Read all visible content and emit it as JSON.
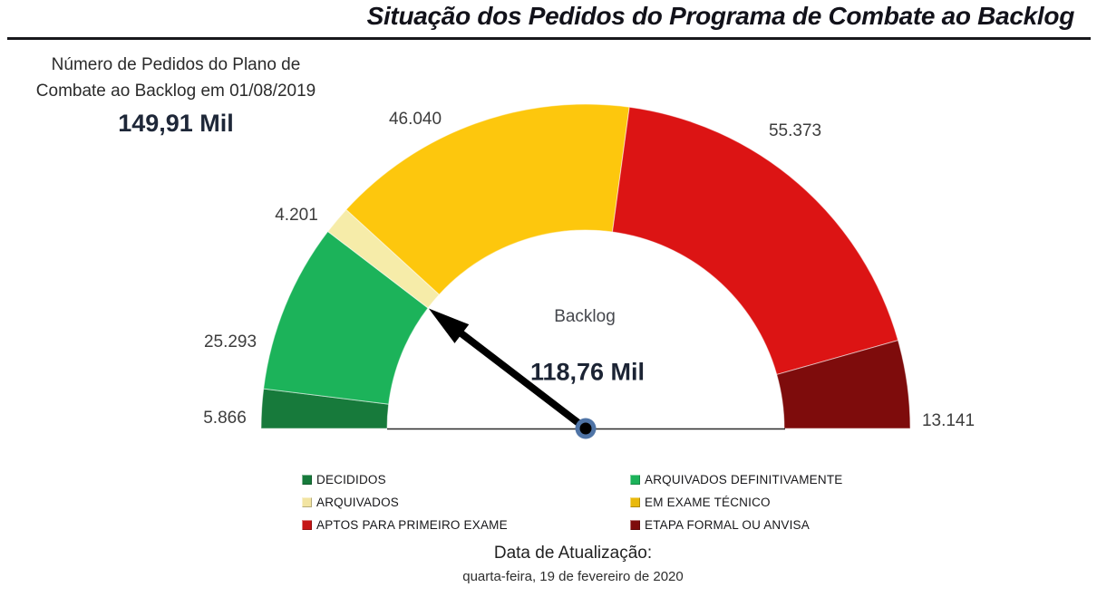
{
  "title": "Situação dos Pedidos do Programa de Combate ao Backlog",
  "kpi": {
    "line1": "Número de Pedidos do Plano de",
    "line2": "Combate ao Backlog em 01/08/2019",
    "value": "149,91 Mil"
  },
  "gauge_center": {
    "label": "Backlog",
    "value": "118,76 Mil"
  },
  "footer": {
    "label": "Data de Atualização:",
    "date": "quarta-feira, 19 de fevereiro de 2020"
  },
  "chart_data": {
    "type": "gauge-donut",
    "title": "Situação dos Pedidos do Programa de Combate ao Backlog",
    "total_value": 149914,
    "total_display": "149,91 Mil",
    "pointer_value": 118755,
    "pointer_display": "118,76 Mil",
    "pointer_label": "Backlog",
    "sweep_deg": 180,
    "segments": [
      {
        "name": "DECIDIDOS",
        "value": 5866,
        "display": "5.866",
        "color": "#177a3b"
      },
      {
        "name": "ARQUIVADOS DEFINITIVAMENTE",
        "value": 25293,
        "display": "25.293",
        "color": "#1cb35a"
      },
      {
        "name": "ARQUIVADOS",
        "value": 4201,
        "display": "4.201",
        "color": "#f6eca9"
      },
      {
        "name": "EM EXAME TÉCNICO",
        "value": 46040,
        "display": "46.040",
        "color": "#fdc70d"
      },
      {
        "name": "APTOS PARA PRIMEIRO EXAME",
        "value": 55373,
        "display": "55.373",
        "color": "#dc1414"
      },
      {
        "name": "ETAPA FORMAL OU ANVISA",
        "value": 13141,
        "display": "13.141",
        "color": "#7e0c0c"
      }
    ],
    "colors": {
      "needle": "#000000",
      "pivot_ring": "#4f74a6",
      "pivot_dot": "#000000",
      "baseline": "#2b2b2b"
    }
  },
  "legend": {
    "items": [
      {
        "label": "DECIDIDOS",
        "color": "#177a3b"
      },
      {
        "label": "ARQUIVADOS DEFINITIVAMENTE",
        "color": "#1cb35a"
      },
      {
        "label": "ARQUIVADOS",
        "color": "#f2e4a2"
      },
      {
        "label": "EM EXAME TÉCNICO",
        "color": "#e9b90c"
      },
      {
        "label": "APTOS PARA PRIMEIRO EXAME",
        "color": "#c51414"
      },
      {
        "label": "ETAPA FORMAL OU ANVISA",
        "color": "#7e0c0c"
      }
    ]
  }
}
